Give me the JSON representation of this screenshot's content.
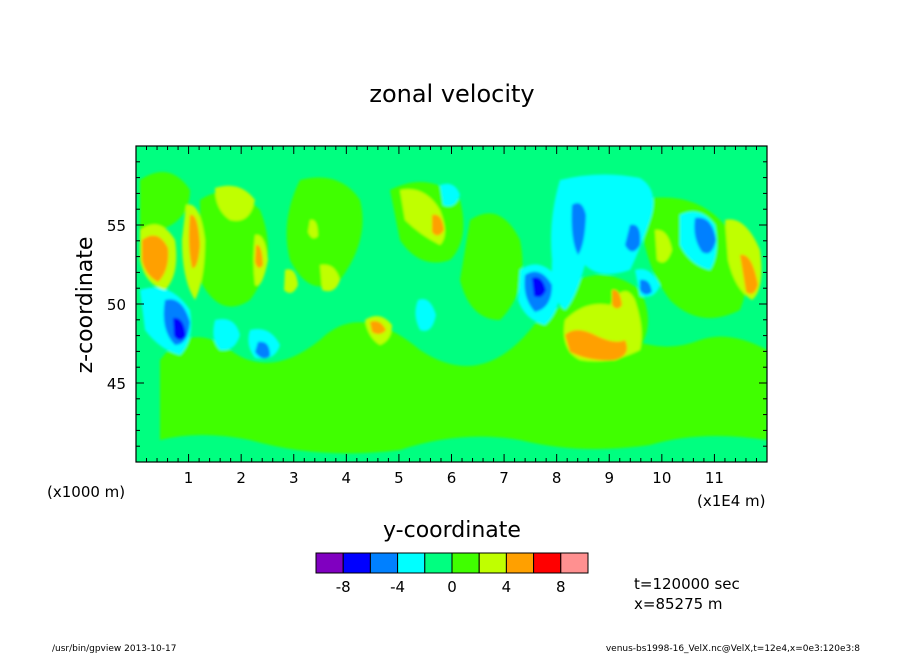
{
  "chart_data": {
    "type": "heatmap",
    "title": "zonal velocity",
    "xlabel": "y-coordinate",
    "ylabel": "z-coordinate",
    "x_scale_label": "(x1E4 m)",
    "y_scale_label": "(x1000 m)",
    "xlim": [
      0,
      120000
    ],
    "ylim": [
      40000,
      60000
    ],
    "x_ticks": [
      "1",
      "2",
      "3",
      "4",
      "5",
      "6",
      "7",
      "8",
      "9",
      "10",
      "11"
    ],
    "y_ticks": [
      "45",
      "50",
      "55"
    ],
    "colorbar": {
      "levels": [
        -10,
        -8,
        -6,
        -4,
        -2,
        0,
        2,
        4,
        6,
        8,
        10
      ],
      "labels": [
        "-8",
        "-4",
        "0",
        "4",
        "8"
      ],
      "colors": [
        "#8000c0",
        "#0000ff",
        "#0080ff",
        "#00ffff",
        "#00ff80",
        "#40ff00",
        "#c0ff00",
        "#ffa000",
        "#ff0000",
        "#ff9090"
      ]
    },
    "info_lines": [
      "t=120000 sec",
      "x=85275 m"
    ]
  },
  "footer": {
    "left": "/usr/bin/gpview  2013-10-17",
    "right": "venus-bs1998-16_VelX.nc@VelX,t=12e4,x=0e3:120e3:8"
  }
}
